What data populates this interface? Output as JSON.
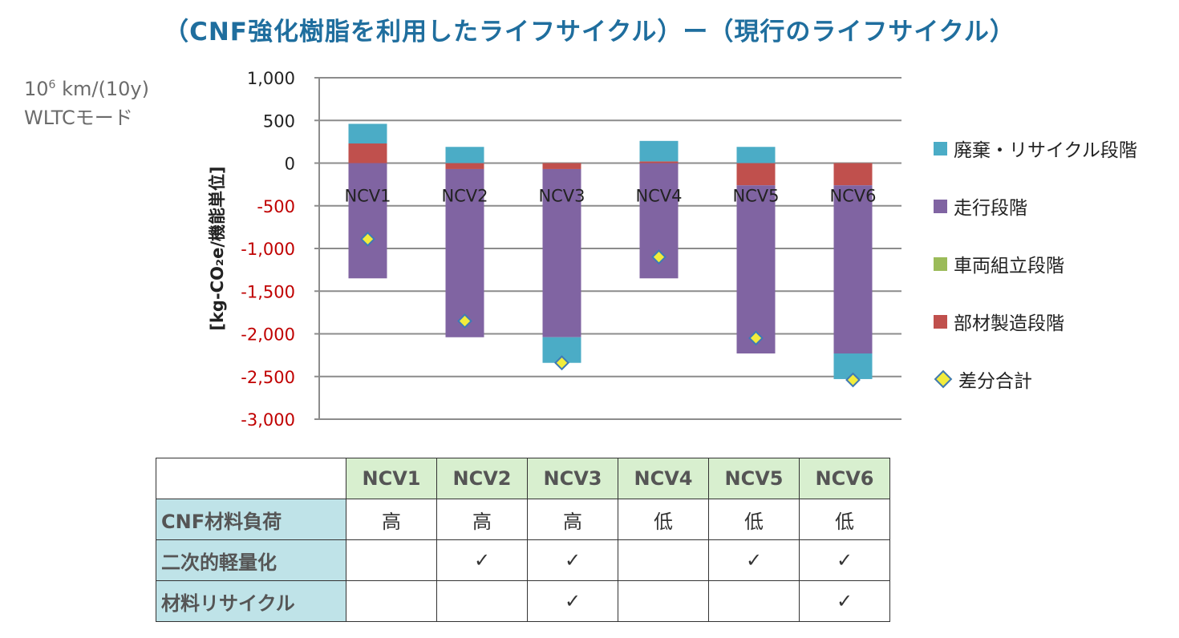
{
  "title": "（CNF強化樹脂を利用したライフサイクル）ー（現行のライフサイクル）",
  "note": {
    "line1_base": "10",
    "line1_sup": "6",
    "line1_rest": " km/(10y)",
    "line2": "WLTCモード"
  },
  "chart_data": {
    "type": "bar",
    "stacked": true,
    "categories": [
      "NCV1",
      "NCV2",
      "NCV3",
      "NCV4",
      "NCV5",
      "NCV6"
    ],
    "ylabel": "[kg-CO₂e/機能単位]",
    "ylim": [
      -3000,
      1000
    ],
    "yticks": [
      {
        "value": 1000,
        "label": "1,000"
      },
      {
        "value": 500,
        "label": "500"
      },
      {
        "value": 0,
        "label": "0"
      },
      {
        "value": -500,
        "label": "-500"
      },
      {
        "value": -1000,
        "label": "-1,000"
      },
      {
        "value": -1500,
        "label": "-1,500"
      },
      {
        "value": -2000,
        "label": "-2,000"
      },
      {
        "value": -2500,
        "label": "-2,500"
      },
      {
        "value": -3000,
        "label": "-3,000"
      }
    ],
    "positive_tick_color": "#222222",
    "negative_tick_color": "#c00000",
    "grid": true,
    "legend_position": "right",
    "series": [
      {
        "name": "部材製造段階",
        "color": "#c0504d",
        "values": [
          230,
          -70,
          -70,
          20,
          -260,
          -260
        ]
      },
      {
        "name": "車両組立段階",
        "color": "#9bbb59",
        "values": [
          0,
          0,
          0,
          0,
          0,
          0
        ]
      },
      {
        "name": "走行段階",
        "color": "#8064a2",
        "values": [
          -1350,
          -1970,
          -1970,
          -1350,
          -1970,
          -1970
        ]
      },
      {
        "name": "廃棄・リサイクル段階",
        "color": "#4bacc6",
        "values": [
          230,
          190,
          -300,
          240,
          190,
          -300
        ]
      }
    ],
    "totals": {
      "name": "差分合計",
      "values": [
        -890,
        -1850,
        -2340,
        -1100,
        -2050,
        -2540
      ]
    },
    "totals_style": {
      "fill": "#f2ec3c",
      "stroke": "#3f7ab5"
    }
  },
  "legend": [
    {
      "label": "廃棄・リサイクル段階",
      "color": "#4bacc6"
    },
    {
      "label": "走行段階",
      "color": "#8064a2"
    },
    {
      "label": "車両組立段階",
      "color": "#9bbb59"
    },
    {
      "label": "部材製造段階",
      "color": "#c0504d"
    },
    {
      "label": "差分合計",
      "marker": "diamond"
    }
  ],
  "table": {
    "headers": [
      "NCV1",
      "NCV2",
      "NCV3",
      "NCV4",
      "NCV5",
      "NCV6"
    ],
    "rows": [
      {
        "label": "CNF材料負荷",
        "cells": [
          "高",
          "高",
          "高",
          "低",
          "低",
          "低"
        ]
      },
      {
        "label": "二次的軽量化",
        "cells": [
          "",
          "✓",
          "✓",
          "",
          "✓",
          "✓"
        ]
      },
      {
        "label": "材料リサイクル",
        "cells": [
          "",
          "",
          "✓",
          "",
          "",
          "✓"
        ]
      }
    ]
  }
}
